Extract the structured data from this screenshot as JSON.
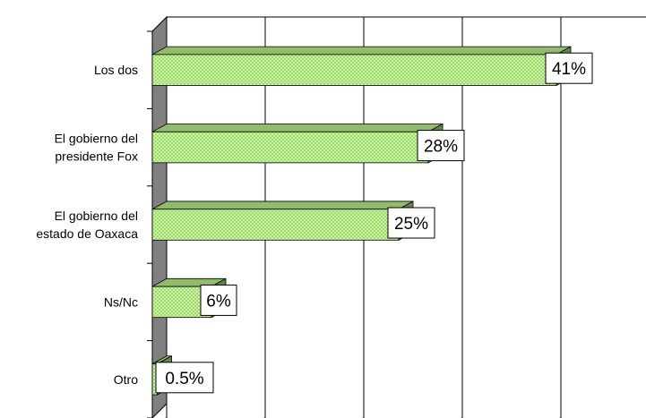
{
  "chart_data": {
    "type": "bar",
    "orientation": "horizontal",
    "style": "3d",
    "categories": [
      [
        "Los dos"
      ],
      [
        "El gobierno del",
        "presidente Fox"
      ],
      [
        "El gobierno del",
        "estado de Oaxaca"
      ],
      [
        "Ns/Nc"
      ],
      [
        "Otro"
      ]
    ],
    "values": [
      41,
      28,
      25,
      6,
      0.5
    ],
    "value_labels": [
      "41%",
      "28%",
      "25%",
      "6%",
      "0.5%"
    ],
    "xlim": [
      0,
      50
    ],
    "grid": true,
    "legend": "none",
    "colors": {
      "bar_front": "#ccff99",
      "bar_hatch": "#9fd07a",
      "bar_top": "#90bc6c",
      "bar_side": "#5f8a45",
      "wall": "#808080",
      "grid": "#000000",
      "label_box_border": "#000000"
    }
  }
}
